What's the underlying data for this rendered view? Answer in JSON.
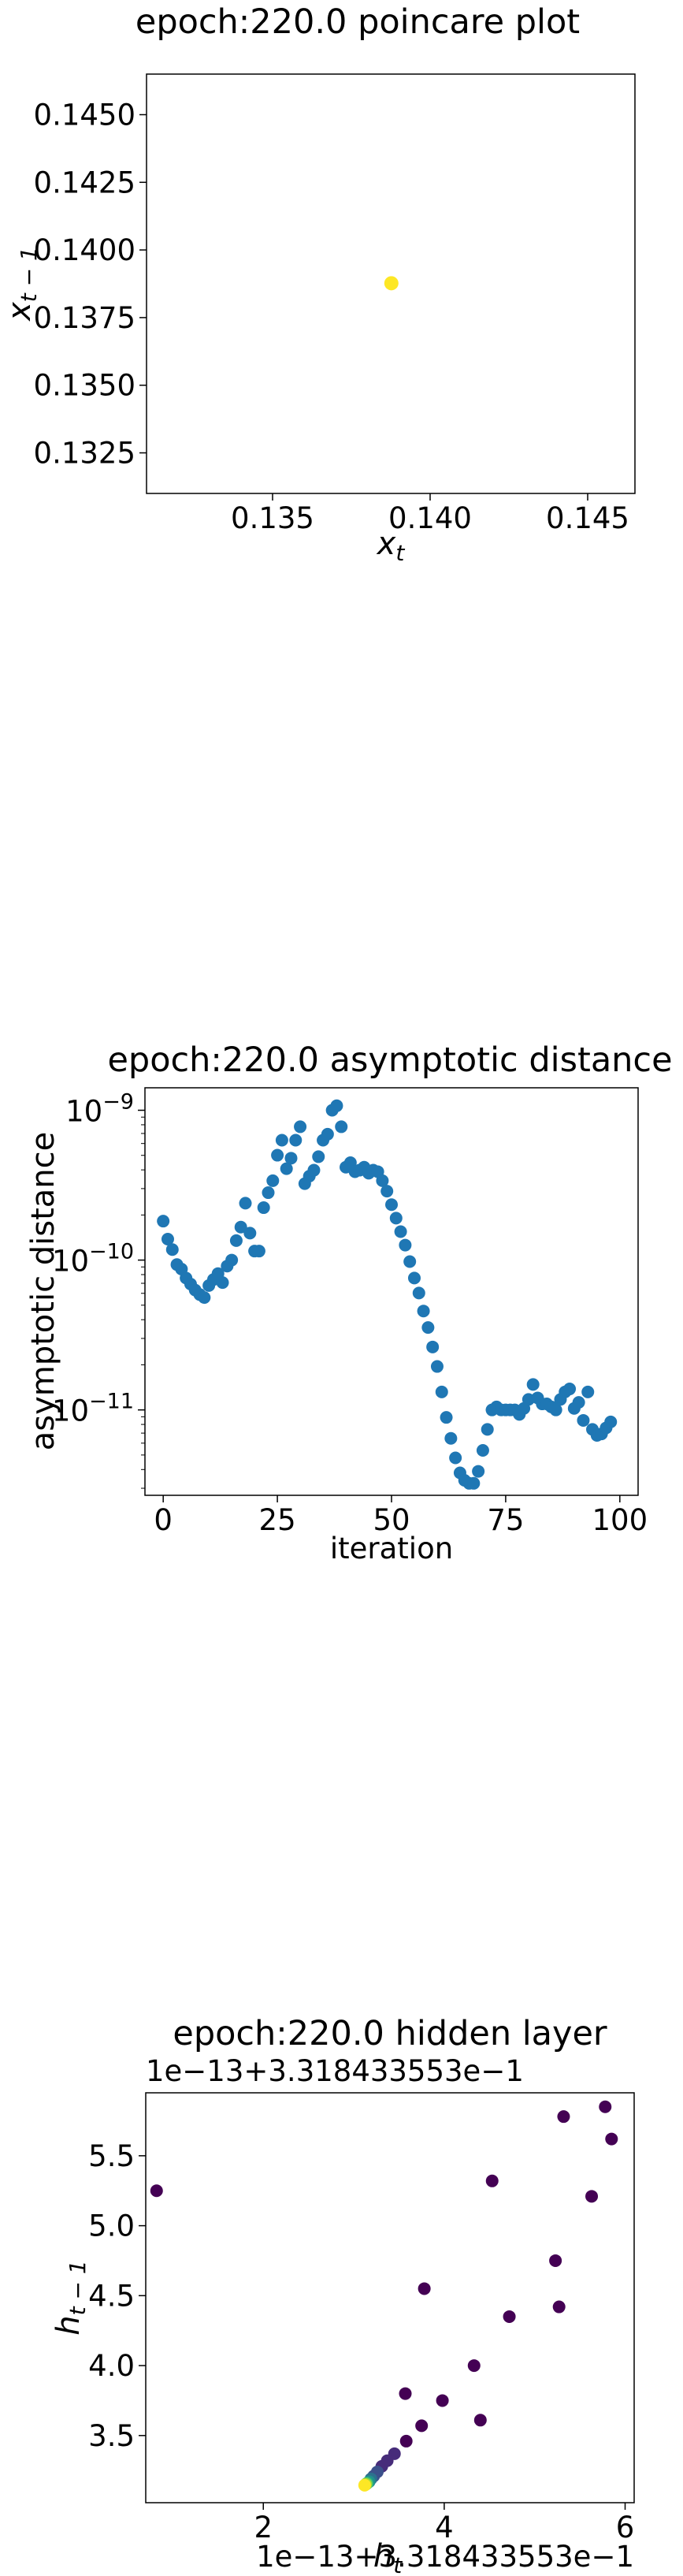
{
  "chart_data": [
    {
      "type": "scatter",
      "title": "epoch:220.0 poincare plot",
      "xlabel": "x_t",
      "ylabel": "x_{t-1}",
      "xlim": [
        0.131,
        0.1465
      ],
      "ylim": [
        0.131,
        0.1465
      ],
      "xticks": [
        "0.135",
        "0.140",
        "0.145"
      ],
      "yticks": [
        "0.1325",
        "0.1350",
        "0.1375",
        "0.1400",
        "0.1425",
        "0.1450"
      ],
      "points_color": "#fde725",
      "points": [
        [
          0.13877,
          0.13877
        ]
      ]
    },
    {
      "type": "scatter",
      "title": "epoch:220.0 asymptotic distance",
      "xlabel": "iteration",
      "ylabel": "asymptotic distance",
      "yscale": "log",
      "xlim": [
        -4,
        104
      ],
      "ylim_log10": [
        -11.57,
        -8.85
      ],
      "xticks": [
        "0",
        "25",
        "50",
        "75",
        "100"
      ],
      "yticks": [
        {
          "base": "10",
          "exp": "−9",
          "log": -9
        },
        {
          "base": "10",
          "exp": "−10",
          "log": -10
        },
        {
          "base": "10",
          "exp": "−11",
          "log": -11
        }
      ],
      "points_color": "#1f77b4",
      "series": [
        {
          "x": [
            0,
            1,
            2,
            3,
            4,
            5,
            6,
            7,
            8,
            9,
            10,
            11,
            12,
            13,
            14,
            15,
            16,
            17,
            18,
            19,
            20,
            21,
            22,
            23,
            24,
            25,
            26,
            27,
            28,
            29,
            30,
            31,
            32,
            33,
            34,
            35,
            36,
            37,
            38,
            39,
            40,
            41,
            42,
            43,
            44,
            45,
            46,
            47,
            48,
            49,
            50,
            51,
            52,
            53,
            54,
            55,
            56,
            57,
            58,
            59,
            60,
            61,
            62,
            63,
            64,
            65,
            66,
            67,
            68,
            69,
            70,
            71,
            72,
            73,
            74,
            75,
            76,
            77,
            78,
            79,
            80,
            81,
            82,
            83,
            84,
            85,
            86,
            87,
            88,
            89,
            90,
            91,
            92,
            93,
            94,
            95,
            96,
            97,
            98
          ],
          "log10_y": [
            -9.74,
            -9.86,
            -9.93,
            -10.03,
            -10.06,
            -10.12,
            -10.16,
            -10.2,
            -10.23,
            -10.25,
            -10.17,
            -10.13,
            -10.09,
            -10.15,
            -10.04,
            -10.0,
            -9.87,
            -9.78,
            -9.62,
            -9.82,
            -9.94,
            -9.94,
            -9.65,
            -9.55,
            -9.47,
            -9.3,
            -9.2,
            -9.39,
            -9.32,
            -9.2,
            -9.11,
            -9.49,
            -9.44,
            -9.4,
            -9.31,
            -9.2,
            -9.16,
            -9.0,
            -8.97,
            -9.11,
            -9.38,
            -9.35,
            -9.41,
            -9.4,
            -9.38,
            -9.42,
            -9.4,
            -9.41,
            -9.47,
            -9.54,
            -9.63,
            -9.72,
            -9.81,
            -9.9,
            -10.01,
            -10.12,
            -10.22,
            -10.34,
            -10.45,
            -10.58,
            -10.71,
            -10.88,
            -11.05,
            -11.19,
            -11.32,
            -11.42,
            -11.47,
            -11.49,
            -11.49,
            -11.41,
            -11.27,
            -11.13,
            -11.0,
            -10.98,
            -11.0,
            -11.0,
            -11.0,
            -11.0,
            -11.03,
            -10.99,
            -10.93,
            -10.83,
            -10.92,
            -10.96,
            -10.96,
            -10.98,
            -11.0,
            -10.93,
            -10.88,
            -10.86,
            -10.99,
            -10.95,
            -11.07,
            -10.88,
            -11.13,
            -11.17,
            -11.16,
            -11.12,
            -11.08
          ]
        }
      ]
    },
    {
      "type": "scatter",
      "title": "epoch:220.0 hidden layer",
      "xlabel": "h_t",
      "ylabel": "h_{t-1}",
      "offset_text_top": "1e−13+3.318433553e−1",
      "offset_text_bottom": "1e−13+3.318433553e−1",
      "xlim": [
        0.7,
        6.1
      ],
      "ylim": [
        3.02,
        5.95
      ],
      "xticks": [
        "2",
        "4",
        "6"
      ],
      "yticks": [
        "3.5",
        "4.0",
        "4.5",
        "5.0",
        "5.5"
      ],
      "colormap": [
        "#440154",
        "#472c7a",
        "#3b518b",
        "#2c718e",
        "#21908d",
        "#27ad81",
        "#5cc863",
        "#aadc32",
        "#fde725"
      ],
      "points": [
        [
          0.82,
          5.25,
          0
        ],
        [
          4.53,
          5.32,
          0
        ],
        [
          5.63,
          5.21,
          0
        ],
        [
          5.32,
          5.78,
          0
        ],
        [
          5.78,
          5.85,
          0
        ],
        [
          5.85,
          5.62,
          0
        ],
        [
          3.78,
          4.55,
          0
        ],
        [
          5.23,
          4.75,
          0
        ],
        [
          4.72,
          4.35,
          0
        ],
        [
          5.27,
          4.42,
          0
        ],
        [
          4.33,
          4.0,
          0
        ],
        [
          4.4,
          3.61,
          0
        ],
        [
          3.57,
          3.8,
          0
        ],
        [
          3.98,
          3.75,
          0
        ],
        [
          3.75,
          3.57,
          0.02
        ],
        [
          3.58,
          3.46,
          0.05
        ],
        [
          3.45,
          3.37,
          0.08
        ],
        [
          3.37,
          3.32,
          0.12
        ],
        [
          3.31,
          3.28,
          0.16
        ],
        [
          3.26,
          3.24,
          0.21
        ],
        [
          3.22,
          3.21,
          0.28
        ],
        [
          3.19,
          3.19,
          0.36
        ],
        [
          3.17,
          3.17,
          0.47
        ],
        [
          3.15,
          3.16,
          0.58
        ],
        [
          3.14,
          3.155,
          0.72
        ],
        [
          3.13,
          3.15,
          0.86
        ],
        [
          3.12,
          3.145,
          1.0
        ]
      ]
    }
  ]
}
